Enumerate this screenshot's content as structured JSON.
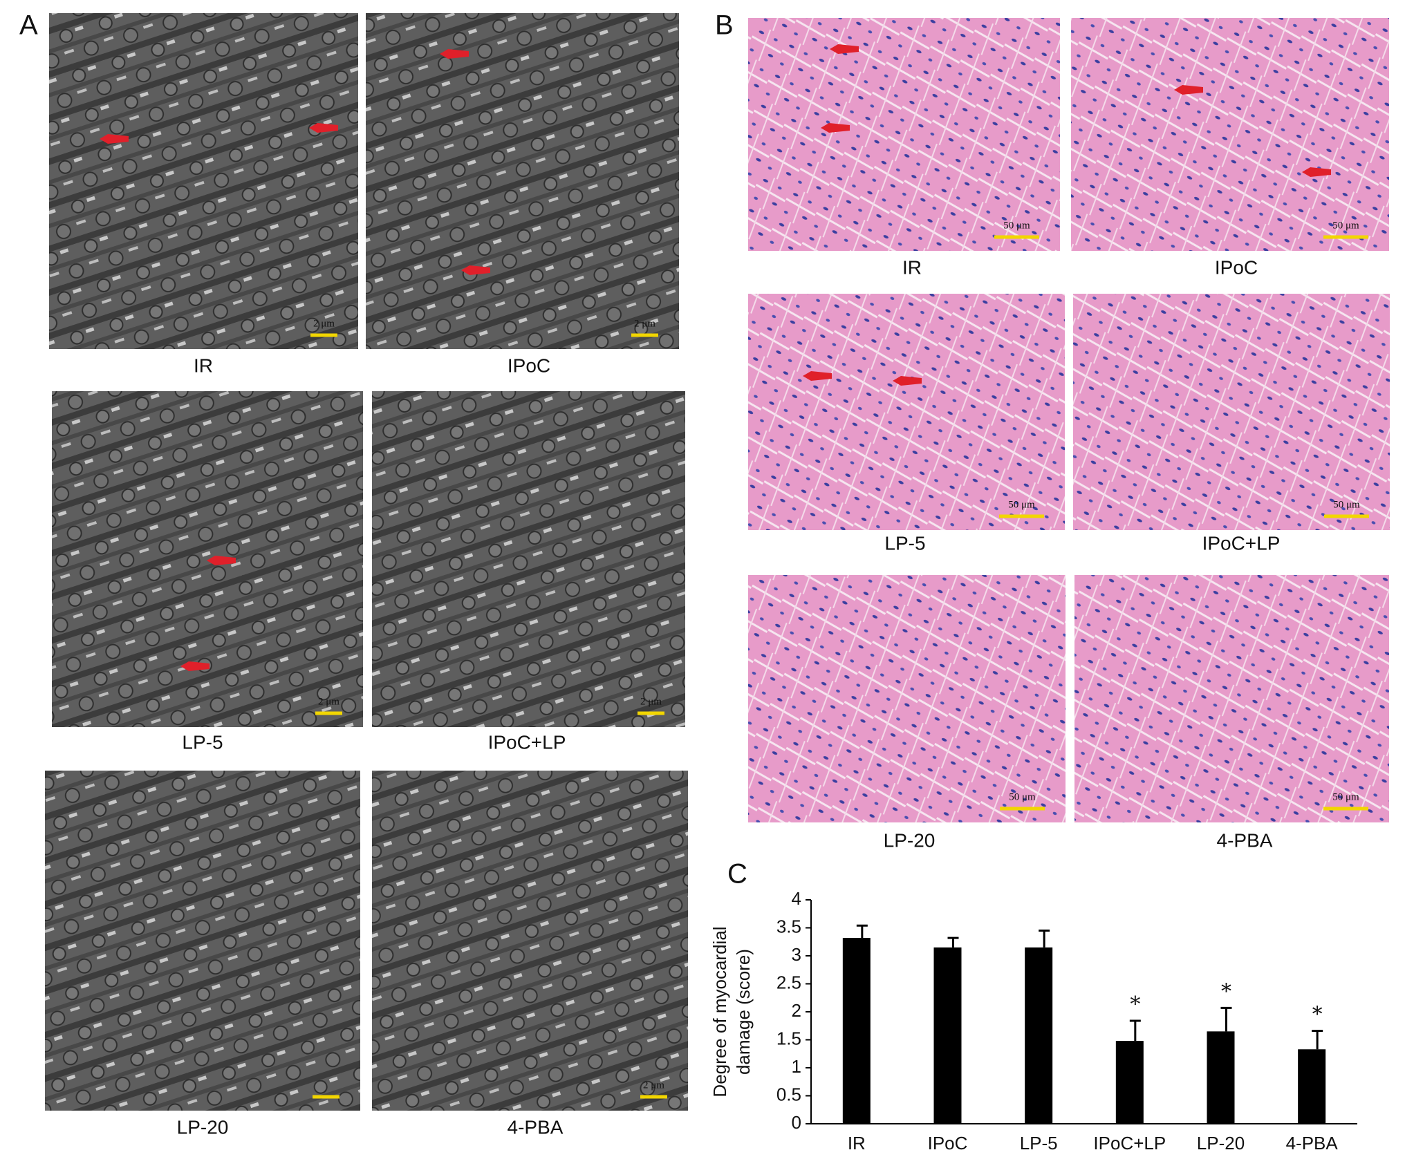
{
  "panel_A": {
    "label": "A",
    "images": [
      {
        "caption": "IR",
        "scale_bar": "2 μm"
      },
      {
        "caption": "IPoC",
        "scale_bar": "2 μm"
      },
      {
        "caption": "LP-5",
        "scale_bar": "2 μm"
      },
      {
        "caption": "IPoC+LP",
        "scale_bar": "2 μm"
      },
      {
        "caption": "LP-20"
      },
      {
        "caption": "4-PBA",
        "scale_bar": "2 μm"
      }
    ]
  },
  "panel_B": {
    "label": "B",
    "images": [
      {
        "caption": "IR",
        "scale_bar": "50 μm"
      },
      {
        "caption": "IPoC",
        "scale_bar": "50 μm"
      },
      {
        "caption": "LP-5",
        "scale_bar": "50 μm"
      },
      {
        "caption": "IPoC+LP",
        "scale_bar": "50 μm"
      },
      {
        "caption": "LP-20",
        "scale_bar": "50 μm"
      },
      {
        "caption": "4-PBA",
        "scale_bar": "50 μm"
      }
    ]
  },
  "chart_data": {
    "type": "bar",
    "label": "C",
    "ylabel": [
      "Degree of myocardial",
      "damage (score)"
    ],
    "categories": [
      "IR",
      "IPoC",
      "LP-5",
      "IPoC+LP",
      "LP-20",
      "4-PBA"
    ],
    "values": [
      3.32,
      3.15,
      3.15,
      1.48,
      1.65,
      1.33
    ],
    "errors": [
      0.22,
      0.17,
      0.3,
      0.36,
      0.42,
      0.33
    ],
    "annotations": [
      null,
      null,
      null,
      "*",
      "*",
      "*"
    ],
    "color": "#000000",
    "ylim": [
      0,
      4
    ],
    "yticks": [
      0,
      0.5,
      1,
      1.5,
      2,
      2.5,
      3,
      3.5,
      4
    ]
  }
}
